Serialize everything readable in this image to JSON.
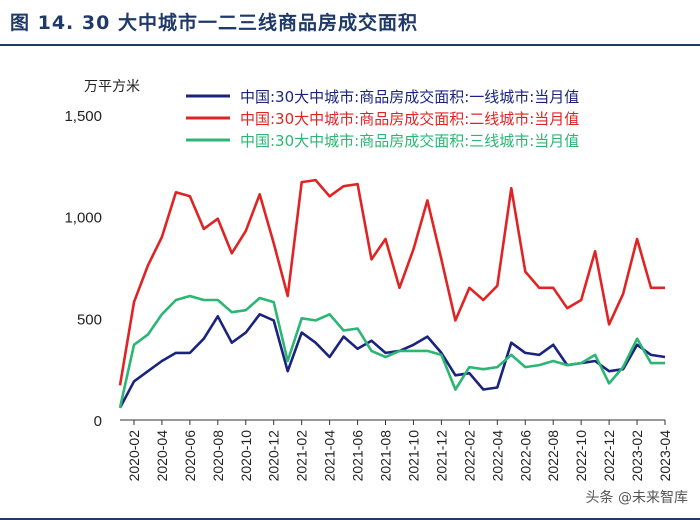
{
  "header": {
    "title": "图 14. 30 大中城市一二三线商品房成交面积"
  },
  "watermark": "头条 @未来智库",
  "colors": {
    "title": "#1f3a68",
    "tier1": "#1a237e",
    "tier2": "#e02424",
    "tier3": "#2bb673",
    "axis": "#333333"
  },
  "chart_data": {
    "type": "line",
    "title": "30 大中城市一二三线商品房成交面积",
    "ylabel": "万平方米",
    "xlabel": "",
    "ylim": [
      0,
      1500
    ],
    "yticks": [
      0,
      500,
      1000,
      1500
    ],
    "ytick_labels": [
      "0",
      "500",
      "1,000",
      "1,500"
    ],
    "x": [
      "2020-01",
      "2020-02",
      "2020-03",
      "2020-04",
      "2020-05",
      "2020-06",
      "2020-07",
      "2020-08",
      "2020-09",
      "2020-10",
      "2020-11",
      "2020-12",
      "2021-01",
      "2021-02",
      "2021-03",
      "2021-04",
      "2021-05",
      "2021-06",
      "2021-07",
      "2021-08",
      "2021-09",
      "2021-10",
      "2021-11",
      "2021-12",
      "2022-01",
      "2022-02",
      "2022-03",
      "2022-04",
      "2022-05",
      "2022-06",
      "2022-07",
      "2022-08",
      "2022-09",
      "2022-10",
      "2022-11",
      "2022-12",
      "2023-01",
      "2023-02",
      "2023-03",
      "2023-04"
    ],
    "xtick_labels": [
      "2020-02",
      "2020-04",
      "2020-06",
      "2020-08",
      "2020-10",
      "2020-12",
      "2021-02",
      "2021-04",
      "2021-06",
      "2021-08",
      "2021-10",
      "2021-12",
      "2022-02",
      "2022-04",
      "2022-06",
      "2022-08",
      "2022-10",
      "2022-12",
      "2023-02",
      "2023-04"
    ],
    "legend_position": "top-right",
    "series": [
      {
        "name": "中国:30大中城市:商品房成交面积:一线城市:当月值",
        "color": "#1a237e",
        "values": [
          60,
          190,
          240,
          290,
          330,
          330,
          400,
          510,
          380,
          430,
          520,
          490,
          240,
          430,
          380,
          310,
          410,
          350,
          390,
          330,
          340,
          370,
          410,
          330,
          220,
          230,
          150,
          160,
          380,
          330,
          320,
          370,
          270,
          280,
          290,
          240,
          250,
          370,
          320,
          310
        ]
      },
      {
        "name": "中国:30大中城市:商品房成交面积:二线城市:当月值",
        "color": "#e02424",
        "values": [
          170,
          580,
          760,
          900,
          1120,
          1100,
          940,
          990,
          820,
          930,
          1110,
          870,
          610,
          1170,
          1180,
          1100,
          1150,
          1160,
          790,
          890,
          650,
          840,
          1080,
          790,
          490,
          650,
          590,
          660,
          1140,
          730,
          650,
          650,
          550,
          590,
          830,
          470,
          620,
          890,
          650,
          650
        ]
      },
      {
        "name": "中国:30大中城市:商品房成交面积:三线城市:当月值",
        "color": "#2bb673",
        "values": [
          60,
          370,
          420,
          520,
          590,
          610,
          590,
          590,
          530,
          540,
          600,
          580,
          290,
          500,
          490,
          520,
          440,
          450,
          340,
          310,
          340,
          340,
          340,
          320,
          150,
          260,
          250,
          260,
          320,
          260,
          270,
          290,
          270,
          280,
          320,
          180,
          260,
          400,
          280,
          280
        ]
      }
    ]
  }
}
